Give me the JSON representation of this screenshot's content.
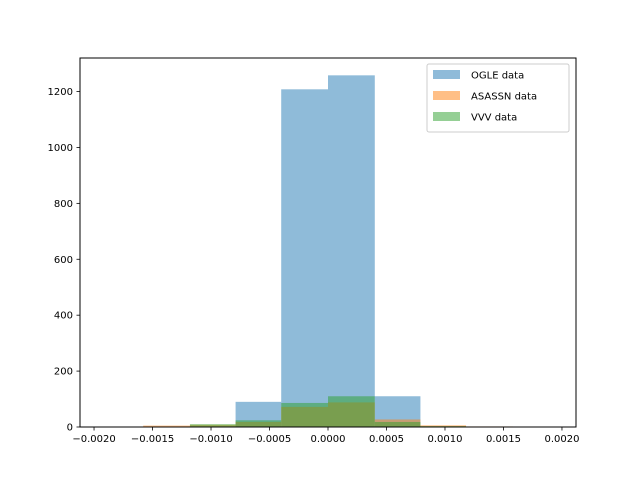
{
  "chart_data": {
    "type": "bar",
    "title": "",
    "xlabel": "",
    "ylabel": "",
    "xlim": [
      -0.00212,
      0.00212
    ],
    "ylim": [
      0,
      1320
    ],
    "grid": false,
    "legend_position": "top-right",
    "x_ticks": [
      -0.002,
      -0.0015,
      -0.001,
      -0.0005,
      0.0,
      0.0005,
      0.001,
      0.0015,
      0.002
    ],
    "x_tick_labels": [
      "−0.0020",
      "−0.0015",
      "−0.0010",
      "−0.0005",
      "0.0000",
      "0.0005",
      "0.0010",
      "0.0015",
      "0.0020"
    ],
    "y_ticks": [
      0,
      200,
      400,
      600,
      800,
      1000,
      1200
    ],
    "y_tick_labels": [
      "0",
      "200",
      "400",
      "600",
      "800",
      "1000",
      "1200"
    ],
    "series": [
      {
        "name": "OGLE data",
        "color": "#1f77b4",
        "opacity": 0.5,
        "bins": [
          {
            "x0": -0.00079,
            "x1": -0.0004,
            "value": 90
          },
          {
            "x0": -0.0004,
            "x1": 0.0,
            "value": 1208
          },
          {
            "x0": 0.0,
            "x1": 0.0004,
            "value": 1258
          },
          {
            "x0": 0.0004,
            "x1": 0.00079,
            "value": 110
          }
        ]
      },
      {
        "name": "ASASSN data",
        "color": "#ff7f0e",
        "opacity": 0.5,
        "bins": [
          {
            "x0": -0.00158,
            "x1": -0.00118,
            "value": 5
          },
          {
            "x0": -0.00118,
            "x1": -0.00079,
            "value": 8
          },
          {
            "x0": -0.00079,
            "x1": -0.0004,
            "value": 18
          },
          {
            "x0": -0.0004,
            "x1": 0.0,
            "value": 72
          },
          {
            "x0": 0.0,
            "x1": 0.0004,
            "value": 88
          },
          {
            "x0": 0.0004,
            "x1": 0.00079,
            "value": 27
          },
          {
            "x0": 0.00079,
            "x1": 0.00118,
            "value": 6
          },
          {
            "x0": 0.00118,
            "x1": 0.00158,
            "value": 2
          }
        ]
      },
      {
        "name": "VVV data",
        "color": "#2ca02c",
        "opacity": 0.5,
        "bins": [
          {
            "x0": -0.00118,
            "x1": -0.00079,
            "value": 10
          },
          {
            "x0": -0.00079,
            "x1": -0.0004,
            "value": 24
          },
          {
            "x0": -0.0004,
            "x1": 0.0,
            "value": 86
          },
          {
            "x0": 0.0,
            "x1": 0.0004,
            "value": 110
          },
          {
            "x0": 0.0004,
            "x1": 0.00079,
            "value": 18
          },
          {
            "x0": 0.00079,
            "x1": 0.00118,
            "value": 3
          }
        ]
      }
    ]
  }
}
